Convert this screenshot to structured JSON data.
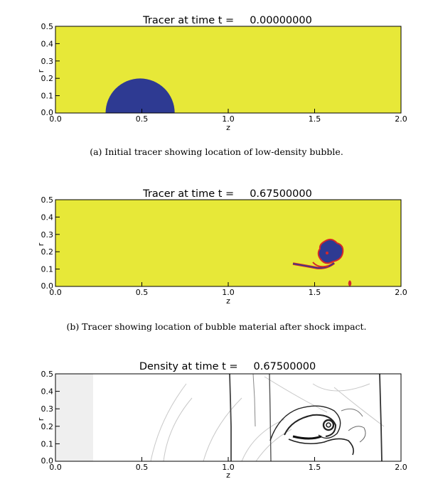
{
  "colors": {
    "tracer_background": "#e7e838",
    "bubble": "#2e3a92",
    "interface": "#d42a2a",
    "density_background": "#ffffff",
    "density_preshock": "#efefef",
    "axes": "#000000"
  },
  "captions": {
    "a": "(a) Initial tracer showing location of low-density bubble.",
    "b": "(b) Tracer showing location of bubble material after shock impact."
  },
  "chart_data": [
    {
      "type": "heatmap",
      "title_label": "Tracer at time t =",
      "title_time": "0.00000000",
      "xlabel": "z",
      "ylabel": "r",
      "xlim": [
        0.0,
        2.0
      ],
      "ylim": [
        0.0,
        0.5
      ],
      "xticks": [
        "0.0",
        "0.5",
        "1.0",
        "1.5",
        "2.0"
      ],
      "yticks": [
        "0.0",
        "0.1",
        "0.2",
        "0.3",
        "0.4",
        "0.5"
      ],
      "bubble": {
        "center_z": 0.5,
        "center_r": 0.0,
        "radius": 0.2
      }
    },
    {
      "type": "heatmap",
      "title_label": "Tracer at time t =",
      "title_time": "0.67500000",
      "xlabel": "z",
      "ylabel": "r",
      "xlim": [
        0.0,
        2.0
      ],
      "ylim": [
        0.0,
        0.5
      ],
      "xticks": [
        "0.0",
        "0.5",
        "1.0",
        "1.5",
        "2.0"
      ],
      "yticks": [
        "0.0",
        "0.1",
        "0.2",
        "0.3",
        "0.4",
        "0.5"
      ],
      "bubble_blob": [
        [
          1.56,
          0.17
        ],
        [
          1.54,
          0.22
        ],
        [
          1.57,
          0.26
        ],
        [
          1.61,
          0.25
        ],
        [
          1.65,
          0.22
        ],
        [
          1.64,
          0.18
        ],
        [
          1.6,
          0.15
        ],
        [
          1.56,
          0.15
        ]
      ],
      "filament": [
        [
          1.39,
          0.14
        ],
        [
          1.45,
          0.125
        ],
        [
          1.52,
          0.12
        ],
        [
          1.57,
          0.13
        ],
        [
          1.61,
          0.15
        ]
      ]
    },
    {
      "type": "heatmap",
      "title_label": "Density at time t =",
      "title_time": "0.67500000",
      "xlabel": "z",
      "ylabel": "r",
      "xlim": [
        0.0,
        2.0
      ],
      "ylim": [
        0.0,
        0.5
      ],
      "xticks": [
        "0.0",
        "0.5",
        "1.0",
        "1.5",
        "2.0"
      ],
      "yticks": [
        "0.0",
        "0.1",
        "0.2",
        "0.3",
        "0.4",
        "0.5"
      ],
      "preshock_region_z": [
        0.0,
        0.22
      ],
      "shock_fronts_z": [
        1.03,
        1.88
      ],
      "contact_z": 1.27
    }
  ]
}
